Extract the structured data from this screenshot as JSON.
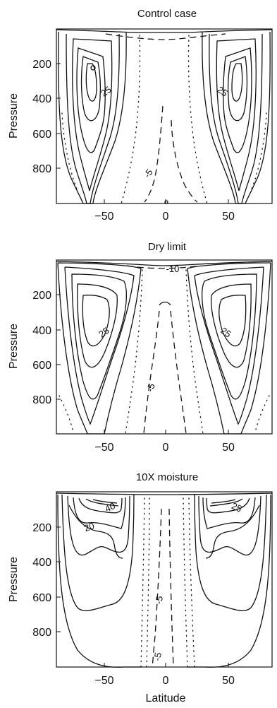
{
  "chart_data": [
    {
      "type": "contour",
      "title": "Control case",
      "xlabel": "",
      "ylabel": "Pressure",
      "xlim": [
        -90,
        90
      ],
      "ylim": [
        1000,
        0
      ],
      "y_reversed": true,
      "xticks": [
        -50,
        0,
        50
      ],
      "yticks": [
        200,
        400,
        600,
        800
      ],
      "contour_labels": [
        {
          "text": "25",
          "x": -40,
          "y": 340
        },
        {
          "text": "25",
          "x": 40,
          "y": 340
        },
        {
          "text": "-5",
          "x": -12,
          "y": 830
        }
      ]
    },
    {
      "type": "contour",
      "title": "Dry limit",
      "xlabel": "",
      "ylabel": "Pressure",
      "xlim": [
        -90,
        90
      ],
      "ylim": [
        1000,
        0
      ],
      "y_reversed": true,
      "xticks": [
        -50,
        0,
        50
      ],
      "yticks": [
        200,
        400,
        600,
        800
      ],
      "contour_labels": [
        {
          "text": "-10",
          "x": 0,
          "y": 70
        },
        {
          "text": "25",
          "x": -40,
          "y": 380
        },
        {
          "text": "25",
          "x": 40,
          "y": 380
        },
        {
          "text": "-5",
          "x": -12,
          "y": 600
        }
      ]
    },
    {
      "type": "contour",
      "title": "10X moisture",
      "xlabel": "Latitude",
      "ylabel": "Pressure",
      "xlim": [
        -90,
        90
      ],
      "ylim": [
        1000,
        0
      ],
      "y_reversed": true,
      "xticks": [
        -50,
        0,
        50
      ],
      "yticks": [
        200,
        400,
        600,
        800
      ],
      "contour_labels": [
        {
          "text": "40",
          "x": -38,
          "y": 120
        },
        {
          "text": "20",
          "x": -60,
          "y": 220
        },
        {
          "text": "25",
          "x": 55,
          "y": 130
        },
        {
          "text": "-5",
          "x": -8,
          "y": 560
        },
        {
          "text": "-5",
          "x": -8,
          "y": 940
        }
      ]
    }
  ]
}
